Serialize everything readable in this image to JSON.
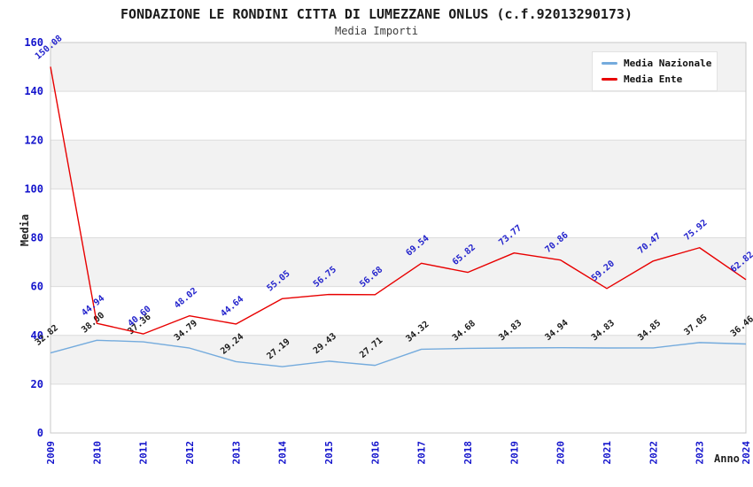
{
  "header": {
    "title": "FONDAZIONE LE RONDINI CITTA DI LUMEZZANE ONLUS (c.f.92013290173)",
    "subtitle": "Media Importi"
  },
  "legend": {
    "items": [
      {
        "label": "Media Nazionale",
        "color": "#74abdd"
      },
      {
        "label": "Media Ente",
        "color": "#e80000"
      }
    ]
  },
  "axes": {
    "y_label": "Media",
    "x_label": "Anno",
    "tick_color": "#1414cc"
  },
  "chart_data": {
    "type": "line",
    "title": "FONDAZIONE LE RONDINI CITTA DI LUMEZZANE ONLUS (c.f.92013290173)",
    "subtitle": "Media Importi",
    "xlabel": "Anno",
    "ylabel": "Media",
    "x": [
      2009,
      2010,
      2011,
      2012,
      2013,
      2014,
      2015,
      2016,
      2017,
      2018,
      2019,
      2020,
      2021,
      2022,
      2023,
      2024
    ],
    "series": [
      {
        "name": "Media Nazionale",
        "color": "#74abdd",
        "label_color": "#1a1a1a",
        "values": [
          32.82,
          38.0,
          37.36,
          34.79,
          29.24,
          27.19,
          29.43,
          27.71,
          34.32,
          34.68,
          34.83,
          34.94,
          34.83,
          34.85,
          37.05,
          36.46
        ]
      },
      {
        "name": "Media Ente",
        "color": "#e80000",
        "label_color": "#2222cc",
        "values": [
          150.08,
          44.94,
          40.6,
          48.02,
          44.64,
          55.05,
          56.75,
          56.68,
          69.54,
          65.82,
          73.77,
          70.86,
          59.2,
          70.47,
          75.92,
          62.82
        ]
      }
    ],
    "ylim": [
      0,
      160
    ],
    "ytick_step": 20,
    "grid": true,
    "band_fill": "#f2f2f2",
    "grid_color": "#dcdcdc",
    "border_color": "#c8c8c8",
    "legend_position": "top-right"
  }
}
